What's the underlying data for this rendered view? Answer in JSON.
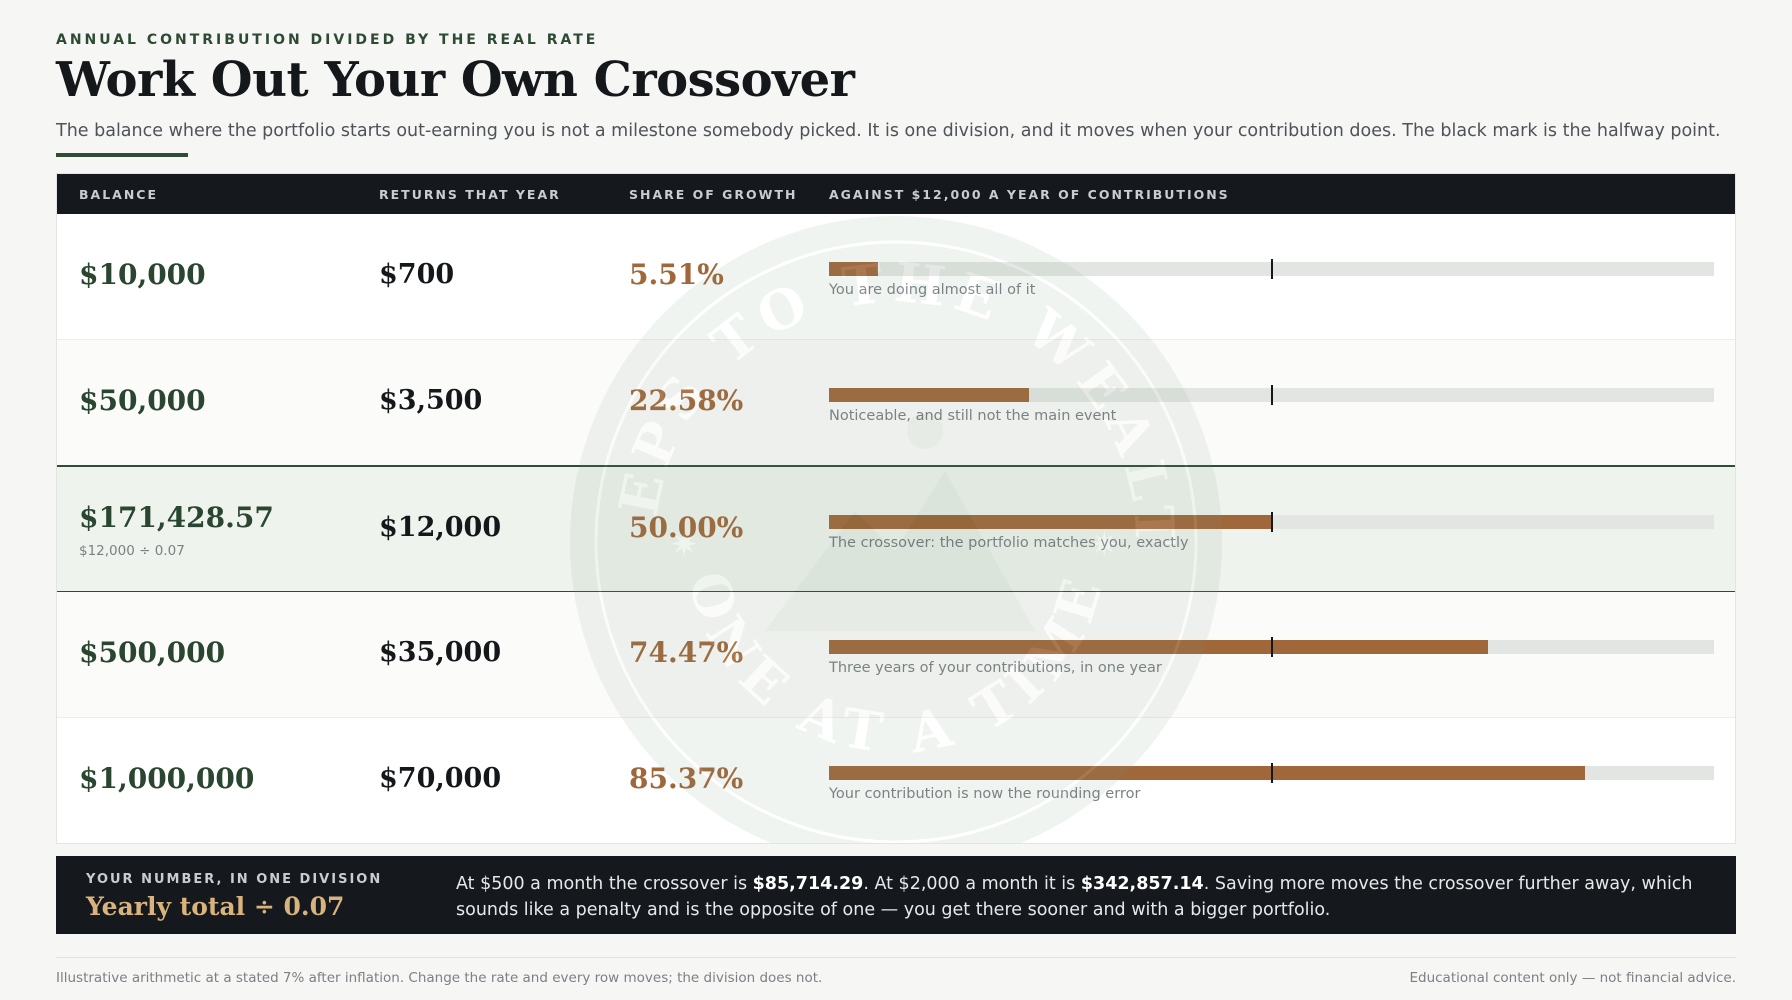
{
  "header": {
    "eyebrow": "ANNUAL CONTRIBUTION DIVIDED BY THE REAL RATE",
    "title": "Work Out Your Own Crossover",
    "subtitle": "The balance where the portfolio starts out-earning you is not a milestone somebody picked. It is one division, and it moves when your contribution does. The black mark is the halfway point."
  },
  "colors": {
    "brand_green": "#2f4d35",
    "bar_bronze": "#a0673a",
    "bar_track": "#e3e5e2",
    "dark_panel": "#15191d",
    "formula_gold": "#d9b37c"
  },
  "watermark": {
    "top_text": "STEPS TO THE WEALTH",
    "bottom_text": "ONE AT A TIME"
  },
  "chart_data": {
    "type": "table",
    "columns": [
      "BALANCE",
      "RETURNS THAT YEAR",
      "SHARE OF GROWTH",
      "AGAINST $12,000 A YEAR OF CONTRIBUTIONS"
    ],
    "bar_max_percent": 100,
    "halfway_mark_percent": 50,
    "rows": [
      {
        "balance": "$10,000",
        "note": "",
        "returns": "$700",
        "share": "5.51%",
        "share_value": 5.51,
        "caption": "You are doing almost all of it",
        "highlight": false
      },
      {
        "balance": "$50,000",
        "note": "",
        "returns": "$3,500",
        "share": "22.58%",
        "share_value": 22.58,
        "caption": "Noticeable, and still not the main event",
        "highlight": false
      },
      {
        "balance": "$171,428.57",
        "note": "$12,000 ÷ 0.07",
        "returns": "$12,000",
        "share": "50.00%",
        "share_value": 50.0,
        "caption": "The crossover: the portfolio matches you, exactly",
        "highlight": true
      },
      {
        "balance": "$500,000",
        "note": "",
        "returns": "$35,000",
        "share": "74.47%",
        "share_value": 74.47,
        "caption": "Three years of your contributions, in one year",
        "highlight": false
      },
      {
        "balance": "$1,000,000",
        "note": "",
        "returns": "$70,000",
        "share": "85.37%",
        "share_value": 85.37,
        "caption": "Your contribution is now the rounding error",
        "highlight": false
      }
    ]
  },
  "summary": {
    "label": "YOUR NUMBER, IN ONE DIVISION",
    "formula": "Yearly total ÷ 0.07",
    "text_1": "At $500 a month the crossover is ",
    "value_1": "$85,714.29",
    "text_2": ". At $2,000 a month it is ",
    "value_2": "$342,857.14",
    "text_3": ". Saving more moves the crossover further away, which sounds like a penalty and is the opposite of one — you get there sooner and with a bigger portfolio."
  },
  "footer": {
    "left": "Illustrative arithmetic at a stated 7% after inflation. Change the rate and every row moves; the division does not.",
    "right": "Educational content only — not financial advice."
  }
}
